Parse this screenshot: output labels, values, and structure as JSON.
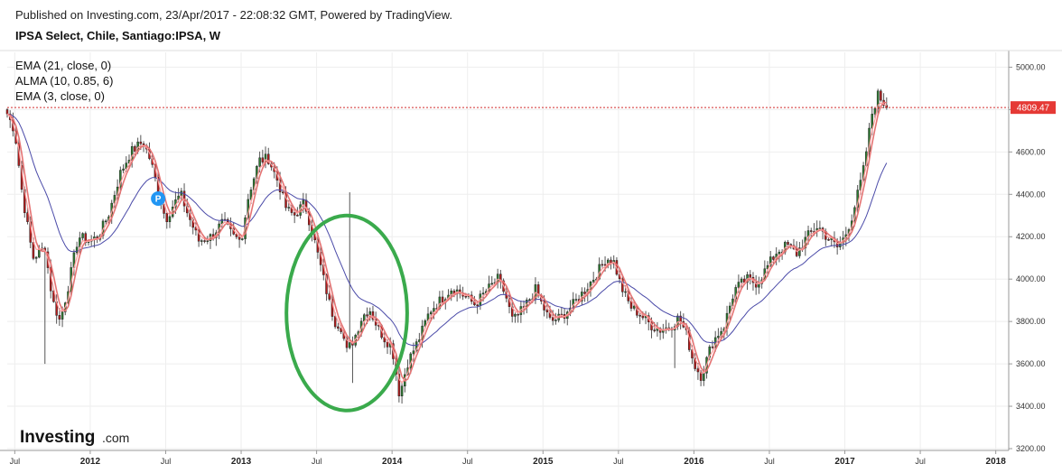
{
  "header": {
    "published": "Published on Investing.com, 23/Apr/2017 - 22:08:32 GMT, Powered by TradingView.",
    "symbol": "IPSA Select, Chile, Santiago:IPSA, W"
  },
  "legend": {
    "items": [
      "EMA (21, close, 0)",
      "ALMA (10, 0.85, 6)",
      "EMA (3, close, 0)"
    ]
  },
  "logo": {
    "main": "Investing",
    "suffix": ".com"
  },
  "marker": {
    "label": "P",
    "color": "#2196f3",
    "date": 2012.45,
    "price": 4380
  },
  "colors": {
    "up": "#2e7d32",
    "down": "#b71c1c",
    "wick": "#555555",
    "ema21": "#4a4aa8",
    "alma": "#e57373",
    "ema3": "#ff9a9a",
    "price_line": "#d32f2f",
    "price_tag": "#e53935",
    "ellipse": "#3aaa4c",
    "grid": "#eeeeee"
  },
  "annotations": {
    "ellipse": {
      "center_date": 2013.7,
      "center_price": 3840,
      "date_radius": 0.4,
      "price_radius": 460
    }
  },
  "chart_data": {
    "type": "candlestick",
    "x_axis": {
      "range": [
        2011.45,
        2018.05
      ],
      "ticks": [
        {
          "value": 2011.5,
          "label": "Jul",
          "bold": false
        },
        {
          "value": 2012.0,
          "label": "2012",
          "bold": true
        },
        {
          "value": 2012.5,
          "label": "Jul",
          "bold": false
        },
        {
          "value": 2013.0,
          "label": "2013",
          "bold": true
        },
        {
          "value": 2013.5,
          "label": "Jul",
          "bold": false
        },
        {
          "value": 2014.0,
          "label": "2014",
          "bold": true
        },
        {
          "value": 2014.5,
          "label": "Jul",
          "bold": false
        },
        {
          "value": 2015.0,
          "label": "2015",
          "bold": true
        },
        {
          "value": 2015.5,
          "label": "Jul",
          "bold": false
        },
        {
          "value": 2016.0,
          "label": "2016",
          "bold": true
        },
        {
          "value": 2016.5,
          "label": "Jul",
          "bold": false
        },
        {
          "value": 2017.0,
          "label": "2017",
          "bold": true
        },
        {
          "value": 2017.5,
          "label": "Jul",
          "bold": false
        },
        {
          "value": 2018.0,
          "label": "2018",
          "bold": true
        }
      ]
    },
    "y_axis": {
      "range": [
        3200,
        5070
      ],
      "ticks": [
        {
          "value": 3200,
          "label": "3200.00"
        },
        {
          "value": 3400,
          "label": "3400.00"
        },
        {
          "value": 3600,
          "label": "3600.00"
        },
        {
          "value": 3800,
          "label": "3800.00"
        },
        {
          "value": 4000,
          "label": "4000.00"
        },
        {
          "value": 4200,
          "label": "4200.00"
        },
        {
          "value": 4400,
          "label": "4400.00"
        },
        {
          "value": 4600,
          "label": "4600.00"
        },
        {
          "value": 4800,
          "label": "4800.00"
        },
        {
          "value": 5000,
          "label": "5000.00"
        }
      ]
    },
    "last_price": {
      "value": 4809.47,
      "label": "4809.47"
    },
    "close_series": [
      [
        2011.45,
        4780
      ],
      [
        2011.5,
        4700
      ],
      [
        2011.55,
        4400
      ],
      [
        2011.62,
        4100
      ],
      [
        2011.7,
        4150
      ],
      [
        2011.75,
        3900
      ],
      [
        2011.8,
        3800
      ],
      [
        2011.85,
        3950
      ],
      [
        2011.92,
        4200
      ],
      [
        2012.0,
        4180
      ],
      [
        2012.05,
        4200
      ],
      [
        2012.12,
        4300
      ],
      [
        2012.2,
        4500
      ],
      [
        2012.27,
        4600
      ],
      [
        2012.35,
        4650
      ],
      [
        2012.4,
        4560
      ],
      [
        2012.45,
        4420
      ],
      [
        2012.5,
        4280
      ],
      [
        2012.55,
        4350
      ],
      [
        2012.6,
        4400
      ],
      [
        2012.65,
        4300
      ],
      [
        2012.72,
        4180
      ],
      [
        2012.8,
        4200
      ],
      [
        2012.88,
        4270
      ],
      [
        2012.95,
        4200
      ],
      [
        2013.0,
        4180
      ],
      [
        2013.05,
        4400
      ],
      [
        2013.12,
        4560
      ],
      [
        2013.18,
        4570
      ],
      [
        2013.25,
        4450
      ],
      [
        2013.3,
        4330
      ],
      [
        2013.35,
        4300
      ],
      [
        2013.42,
        4360
      ],
      [
        2013.48,
        4200
      ],
      [
        2013.53,
        4050
      ],
      [
        2013.58,
        3900
      ],
      [
        2013.62,
        3800
      ],
      [
        2013.66,
        3780
      ],
      [
        2013.7,
        3660
      ],
      [
        2013.75,
        3720
      ],
      [
        2013.8,
        3820
      ],
      [
        2013.85,
        3860
      ],
      [
        2013.9,
        3780
      ],
      [
        2013.95,
        3720
      ],
      [
        2014.0,
        3680
      ],
      [
        2014.05,
        3450
      ],
      [
        2014.1,
        3600
      ],
      [
        2014.18,
        3720
      ],
      [
        2014.25,
        3850
      ],
      [
        2014.32,
        3900
      ],
      [
        2014.4,
        3960
      ],
      [
        2014.48,
        3920
      ],
      [
        2014.55,
        3880
      ],
      [
        2014.62,
        3940
      ],
      [
        2014.7,
        4000
      ],
      [
        2014.75,
        3930
      ],
      [
        2014.8,
        3800
      ],
      [
        2014.87,
        3860
      ],
      [
        2014.95,
        3950
      ],
      [
        2015.0,
        3870
      ],
      [
        2015.05,
        3800
      ],
      [
        2015.12,
        3820
      ],
      [
        2015.2,
        3880
      ],
      [
        2015.28,
        3950
      ],
      [
        2015.35,
        4020
      ],
      [
        2015.42,
        4100
      ],
      [
        2015.47,
        4080
      ],
      [
        2015.52,
        3960
      ],
      [
        2015.58,
        3870
      ],
      [
        2015.65,
        3830
      ],
      [
        2015.72,
        3780
      ],
      [
        2015.78,
        3760
      ],
      [
        2015.85,
        3780
      ],
      [
        2015.9,
        3820
      ],
      [
        2015.95,
        3740
      ],
      [
        2016.0,
        3600
      ],
      [
        2016.05,
        3540
      ],
      [
        2016.12,
        3700
      ],
      [
        2016.2,
        3780
      ],
      [
        2016.27,
        3950
      ],
      [
        2016.35,
        4000
      ],
      [
        2016.42,
        3980
      ],
      [
        2016.48,
        4050
      ],
      [
        2016.55,
        4130
      ],
      [
        2016.62,
        4160
      ],
      [
        2016.68,
        4120
      ],
      [
        2016.75,
        4200
      ],
      [
        2016.82,
        4250
      ],
      [
        2016.88,
        4200
      ],
      [
        2016.95,
        4150
      ],
      [
        2017.0,
        4200
      ],
      [
        2017.05,
        4300
      ],
      [
        2017.12,
        4500
      ],
      [
        2017.18,
        4780
      ],
      [
        2017.22,
        4870
      ],
      [
        2017.28,
        4810
      ]
    ]
  }
}
